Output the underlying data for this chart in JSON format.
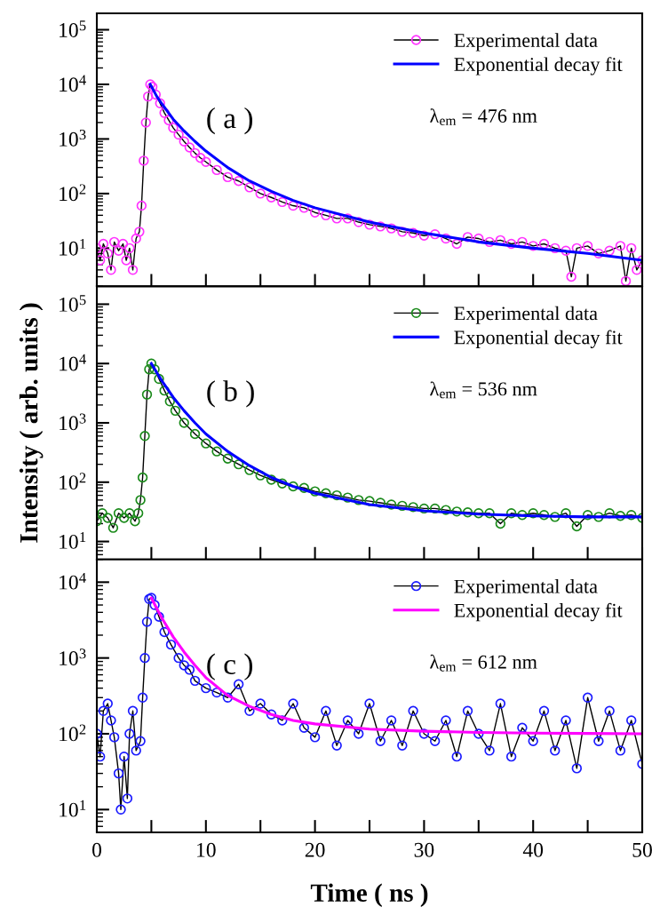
{
  "chart_data": [
    {
      "type": "line",
      "tick_labels": "y",
      "log": "y",
      "grid": false,
      "legend": "top right",
      "xlim": [
        0,
        50
      ],
      "xticks": [
        {
          "value": 0,
          "label": null
        },
        {
          "value": 5,
          "label": null
        },
        {
          "value": 10,
          "label": null
        },
        {
          "value": 15,
          "label": null
        },
        {
          "value": 20,
          "label": null
        },
        {
          "value": 25,
          "label": null
        },
        {
          "value": 30,
          "label": null
        },
        {
          "value": 35,
          "label": null
        },
        {
          "value": 40,
          "label": null
        },
        {
          "value": 45,
          "label": null
        },
        {
          "value": 50,
          "label": null
        }
      ],
      "ylim": [
        2,
        200000
      ],
      "yticks": [
        {
          "value": 10,
          "label": "10$^{1}$"
        },
        {
          "value": 100,
          "label": "10$^{2}$"
        },
        {
          "value": 1000,
          "label": "10$^{3}$"
        },
        {
          "value": 10000,
          "label": "10$^{4}$"
        },
        {
          "value": 100000,
          "label": "10$^{5}$"
        }
      ],
      "annotations": [
        "( a )",
        "λ$_{em}$ = 476 nm"
      ],
      "series": [
        {
          "name": "Experimental data",
          "marker": "circle",
          "color": "#ff33ff",
          "x": [
            0,
            0.3,
            0.6,
            1,
            1.3,
            1.6,
            2,
            2.4,
            2.7,
            3,
            3.3,
            3.6,
            3.9,
            4.1,
            4.3,
            4.5,
            4.7,
            4.9,
            5.1,
            5.4,
            5.8,
            6.2,
            6.6,
            7,
            7.5,
            8,
            8.5,
            9,
            9.5,
            10,
            11,
            12,
            13,
            14,
            15,
            16,
            17,
            18,
            19,
            20,
            21,
            22,
            23,
            24,
            25,
            26,
            27,
            28,
            29,
            30,
            31,
            32,
            33,
            34,
            35,
            36,
            37,
            38,
            39,
            40,
            41,
            42,
            43,
            43.5,
            44,
            45,
            46,
            47,
            48,
            48.5,
            49,
            49.5,
            50
          ],
          "values": [
            10,
            6,
            12,
            8,
            4,
            13,
            9,
            12,
            6,
            10,
            4,
            15,
            20,
            60,
            400,
            2000,
            6000,
            10000,
            9000,
            6500,
            4500,
            3000,
            2200,
            1600,
            1200,
            900,
            700,
            550,
            450,
            380,
            270,
            200,
            170,
            130,
            100,
            85,
            70,
            60,
            55,
            45,
            40,
            35,
            35,
            30,
            27,
            25,
            23,
            20,
            19,
            17,
            18,
            15,
            12,
            16,
            15,
            13,
            14,
            12,
            13,
            11,
            12,
            10,
            9,
            3,
            10,
            11,
            8,
            9,
            11,
            2.5,
            10,
            4,
            6
          ]
        },
        {
          "name": "Exponential decay fit",
          "marker": "none",
          "color": "#0000ff",
          "x": [
            4.9,
            5.5,
            6,
            7,
            8,
            9,
            10,
            12,
            14,
            16,
            18,
            20,
            25,
            30,
            35,
            40,
            45,
            50
          ],
          "values": [
            10000,
            6000,
            4300,
            2300,
            1400,
            900,
            600,
            300,
            170,
            110,
            75,
            55,
            30,
            19,
            13,
            10,
            8,
            6
          ]
        }
      ]
    },
    {
      "type": "line",
      "tick_labels": "y",
      "log": "y",
      "grid": false,
      "legend": "top right",
      "xlim": [
        0,
        50
      ],
      "ylabel": "Intensity ( arb. units )",
      "xticks": [
        {
          "value": 0,
          "label": null
        },
        {
          "value": 5,
          "label": null
        },
        {
          "value": 10,
          "label": null
        },
        {
          "value": 15,
          "label": null
        },
        {
          "value": 20,
          "label": null
        },
        {
          "value": 25,
          "label": null
        },
        {
          "value": 30,
          "label": null
        },
        {
          "value": 35,
          "label": null
        },
        {
          "value": 40,
          "label": null
        },
        {
          "value": 45,
          "label": null
        },
        {
          "value": 50,
          "label": null
        }
      ],
      "ylim": [
        5,
        200000
      ],
      "yticks": [
        {
          "value": 10,
          "label": "10$^{1}$"
        },
        {
          "value": 100,
          "label": "10$^{2}$"
        },
        {
          "value": 1000,
          "label": "10$^{3}$"
        },
        {
          "value": 10000,
          "label": "10$^{4}$"
        },
        {
          "value": 100000,
          "label": "10$^{5}$"
        }
      ],
      "annotations": [
        "( b )",
        "λ$_{em}$ = 536 nm"
      ],
      "series": [
        {
          "name": "Experimental data",
          "marker": "circle",
          "color": "#1a8a1a",
          "x": [
            0,
            0.5,
            1,
            1.5,
            2,
            2.5,
            3,
            3.5,
            3.8,
            4,
            4.2,
            4.4,
            4.6,
            4.8,
            5,
            5.3,
            5.7,
            6.2,
            6.7,
            7.2,
            8,
            9,
            10,
            11,
            12,
            13,
            14,
            15,
            16,
            17,
            18,
            19,
            20,
            21,
            22,
            23,
            24,
            25,
            26,
            27,
            28,
            29,
            30,
            31,
            32,
            33,
            34,
            35,
            36,
            37,
            38,
            39,
            40,
            41,
            42,
            43,
            44,
            45,
            46,
            47,
            48,
            49,
            50
          ],
          "values": [
            22,
            30,
            25,
            17,
            30,
            25,
            30,
            22,
            30,
            50,
            120,
            600,
            3000,
            8000,
            10000,
            8000,
            5500,
            3500,
            2300,
            1600,
            1000,
            650,
            450,
            330,
            250,
            200,
            160,
            130,
            110,
            95,
            85,
            80,
            70,
            65,
            60,
            55,
            50,
            48,
            45,
            42,
            40,
            38,
            36,
            36,
            34,
            32,
            31,
            30,
            30,
            20,
            30,
            28,
            30,
            28,
            26,
            30,
            18,
            28,
            26,
            30,
            27,
            28,
            25
          ]
        },
        {
          "name": "Exponential decay fit",
          "marker": "none",
          "color": "#0000ff",
          "x": [
            5,
            5.5,
            6,
            7,
            8,
            9,
            10,
            12,
            14,
            16,
            18,
            20,
            25,
            30,
            35,
            40,
            45,
            50
          ],
          "values": [
            10000,
            7000,
            5000,
            2700,
            1600,
            1000,
            650,
            330,
            190,
            120,
            85,
            65,
            42,
            33,
            29,
            27,
            26,
            26
          ]
        }
      ]
    },
    {
      "type": "line",
      "log": "y",
      "grid": false,
      "legend": "top right",
      "xlim": [
        0,
        50
      ],
      "xlabel": "Time ( ns )",
      "xticks": [
        0,
        {
          "value": 5,
          "label": null
        },
        10,
        {
          "value": 15,
          "label": null
        },
        20,
        {
          "value": 25,
          "label": null
        },
        30,
        {
          "value": 35,
          "label": null
        },
        40,
        {
          "value": 45,
          "label": null
        },
        50
      ],
      "ylim": [
        5,
        20000
      ],
      "yticks": [
        {
          "value": 10,
          "label": "10$^{1}$"
        },
        {
          "value": 100,
          "label": "10$^{2}$"
        },
        {
          "value": 1000,
          "label": "10$^{3}$"
        },
        {
          "value": 10000,
          "label": "10$^{4}$"
        }
      ],
      "annotations": [
        "( c )",
        "λ$_{em}$ = 612 nm"
      ],
      "series": [
        {
          "name": "Experimental data",
          "marker": "circle",
          "color": "#1a1aff",
          "x": [
            0,
            0.3,
            0.6,
            1,
            1.3,
            1.6,
            2,
            2.2,
            2.5,
            2.8,
            3,
            3.3,
            3.6,
            4,
            4.2,
            4.4,
            4.6,
            4.8,
            5,
            5.3,
            5.7,
            6.2,
            6.8,
            7.5,
            8,
            8.5,
            9,
            10,
            11,
            12,
            13,
            14,
            15,
            16,
            17,
            18,
            19,
            20,
            21,
            22,
            23,
            24,
            25,
            26,
            27,
            28,
            29,
            30,
            31,
            32,
            33,
            34,
            35,
            36,
            37,
            38,
            39,
            40,
            41,
            42,
            43,
            44,
            45,
            46,
            47,
            48,
            49,
            50
          ],
          "values": [
            100,
            50,
            200,
            250,
            150,
            90,
            30,
            10,
            50,
            14,
            100,
            200,
            60,
            80,
            300,
            1000,
            3000,
            6000,
            6200,
            5000,
            3500,
            2200,
            1500,
            1000,
            800,
            700,
            500,
            400,
            350,
            300,
            450,
            200,
            250,
            180,
            150,
            250,
            120,
            90,
            200,
            70,
            150,
            100,
            250,
            80,
            150,
            70,
            200,
            100,
            80,
            150,
            50,
            200,
            100,
            60,
            250,
            50,
            120,
            80,
            200,
            60,
            150,
            35,
            300,
            80,
            200,
            60,
            150,
            40
          ]
        },
        {
          "name": "Exponential decay fit",
          "marker": "none",
          "color": "#ff00ff",
          "x": [
            5,
            5.5,
            6,
            7,
            8,
            9,
            10,
            12,
            14,
            16,
            18,
            20,
            25,
            30,
            35,
            40,
            45,
            50
          ],
          "values": [
            6200,
            4500,
            3300,
            1900,
            1200,
            800,
            550,
            320,
            230,
            180,
            150,
            135,
            115,
            108,
            104,
            102,
            101,
            100
          ]
        }
      ]
    }
  ]
}
